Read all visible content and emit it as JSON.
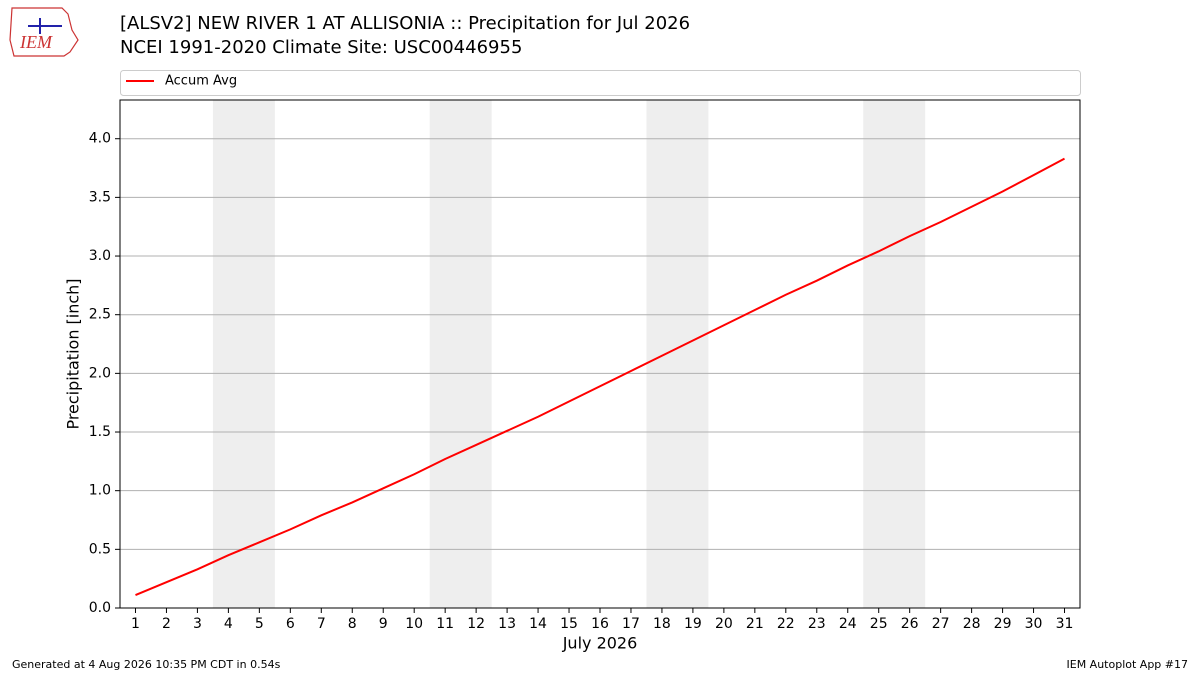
{
  "chart_data": {
    "type": "line",
    "title": "[ALSV2] NEW RIVER 1 AT ALLISONIA :: Precipitation for Jul 2026",
    "subtitle": "NCEI 1991-2020 Climate Site: USC00446955",
    "xlabel": "July 2026",
    "ylabel": "Precipitation [inch]",
    "x": [
      1,
      2,
      3,
      4,
      5,
      6,
      7,
      8,
      9,
      10,
      11,
      12,
      13,
      14,
      15,
      16,
      17,
      18,
      19,
      20,
      21,
      22,
      23,
      24,
      25,
      26,
      27,
      28,
      29,
      30,
      31
    ],
    "series": [
      {
        "name": "Accum Avg",
        "color": "#ff0000",
        "values": [
          0.11,
          0.22,
          0.33,
          0.45,
          0.56,
          0.67,
          0.79,
          0.9,
          1.02,
          1.14,
          1.27,
          1.39,
          1.51,
          1.63,
          1.76,
          1.89,
          2.02,
          2.15,
          2.28,
          2.41,
          2.54,
          2.67,
          2.79,
          2.92,
          3.04,
          3.17,
          3.29,
          3.42,
          3.55,
          3.69,
          3.83
        ]
      }
    ],
    "xlim": [
      0.5,
      31.5
    ],
    "ylim": [
      0,
      4.33
    ],
    "xticks": [
      1,
      2,
      3,
      4,
      5,
      6,
      7,
      8,
      9,
      10,
      11,
      12,
      13,
      14,
      15,
      16,
      17,
      18,
      19,
      20,
      21,
      22,
      23,
      24,
      25,
      26,
      27,
      28,
      29,
      30,
      31
    ],
    "yticks": [
      {
        "value": 0,
        "label": "0.0"
      },
      0.5,
      {
        "value": 1,
        "label": "1.0"
      },
      1.5,
      {
        "value": 2,
        "label": "2.0"
      },
      2.5,
      {
        "value": 3,
        "label": "3.0"
      },
      3.5,
      {
        "value": 4,
        "label": "4.0"
      }
    ],
    "grid": true,
    "shaded_spans": [
      [
        3.5,
        5.5
      ],
      [
        10.5,
        12.5
      ],
      [
        17.5,
        19.5
      ],
      [
        24.5,
        26.5
      ]
    ],
    "shade_color": "#eeeeee",
    "legend": "top",
    "logo_text": "IEM",
    "footer_left": "Generated at 4 Aug 2026 10:35 PM CDT in 0.54s",
    "footer_right": "IEM Autoplot App #17"
  }
}
